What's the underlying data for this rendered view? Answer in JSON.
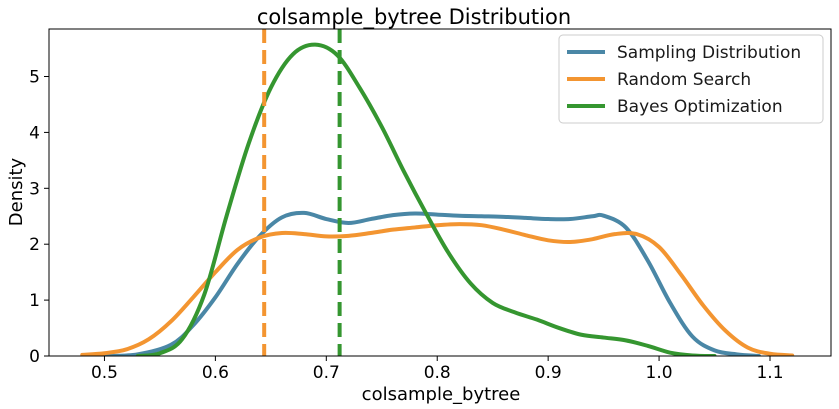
{
  "chart_data": {
    "type": "line",
    "title": "colsample_bytree Distribution",
    "xlabel": "colsample_bytree",
    "ylabel": "Density",
    "xlim": [
      0.45,
      1.155
    ],
    "ylim": [
      0,
      5.85
    ],
    "xticks": [
      0.5,
      0.6,
      0.7,
      0.8,
      0.9,
      1.0,
      1.1
    ],
    "xtick_labels": [
      "0.5",
      "0.6",
      "0.7",
      "0.8",
      "0.9",
      "1.0",
      "1.1"
    ],
    "yticks": [
      0,
      1,
      2,
      3,
      4,
      5
    ],
    "ytick_labels": [
      "0",
      "1",
      "2",
      "3",
      "4",
      "5"
    ],
    "grid": false,
    "legend_position": "top-right",
    "series": [
      {
        "name": "Sampling Distribution",
        "color": "#4a87a6",
        "x": [
          0.5,
          0.53,
          0.56,
          0.58,
          0.6,
          0.62,
          0.64,
          0.66,
          0.68,
          0.7,
          0.72,
          0.74,
          0.76,
          0.78,
          0.8,
          0.82,
          0.84,
          0.86,
          0.88,
          0.9,
          0.92,
          0.94,
          0.95,
          0.97,
          0.99,
          1.01,
          1.03,
          1.05,
          1.07,
          1.09
        ],
        "y": [
          0.0,
          0.03,
          0.2,
          0.55,
          1.05,
          1.65,
          2.15,
          2.48,
          2.56,
          2.45,
          2.38,
          2.45,
          2.52,
          2.55,
          2.53,
          2.51,
          2.5,
          2.49,
          2.47,
          2.45,
          2.45,
          2.5,
          2.51,
          2.3,
          1.7,
          0.95,
          0.35,
          0.1,
          0.03,
          0.0
        ]
      },
      {
        "name": "Random Search",
        "color": "#f39531",
        "x": [
          0.48,
          0.5,
          0.52,
          0.54,
          0.56,
          0.58,
          0.6,
          0.62,
          0.64,
          0.66,
          0.68,
          0.7,
          0.72,
          0.74,
          0.76,
          0.78,
          0.8,
          0.82,
          0.84,
          0.86,
          0.88,
          0.9,
          0.92,
          0.94,
          0.96,
          0.98,
          1.0,
          1.02,
          1.04,
          1.06,
          1.08,
          1.1,
          1.12
        ],
        "y": [
          0.02,
          0.05,
          0.12,
          0.3,
          0.62,
          1.05,
          1.5,
          1.9,
          2.12,
          2.2,
          2.18,
          2.14,
          2.15,
          2.2,
          2.26,
          2.3,
          2.34,
          2.36,
          2.34,
          2.26,
          2.16,
          2.07,
          2.04,
          2.09,
          2.18,
          2.18,
          1.95,
          1.45,
          0.9,
          0.45,
          0.15,
          0.04,
          0.01
        ]
      },
      {
        "name": "Bayes Optimization",
        "color": "#359630",
        "x": [
          0.53,
          0.55,
          0.57,
          0.59,
          0.61,
          0.63,
          0.65,
          0.67,
          0.69,
          0.71,
          0.73,
          0.75,
          0.77,
          0.79,
          0.81,
          0.83,
          0.85,
          0.87,
          0.89,
          0.91,
          0.93,
          0.95,
          0.97,
          0.99,
          1.01,
          1.03,
          1.05
        ],
        "y": [
          0.0,
          0.05,
          0.3,
          1.1,
          2.5,
          3.8,
          4.8,
          5.4,
          5.57,
          5.38,
          4.8,
          4.1,
          3.3,
          2.55,
          1.85,
          1.3,
          0.95,
          0.78,
          0.65,
          0.5,
          0.38,
          0.33,
          0.28,
          0.18,
          0.06,
          0.01,
          0.0
        ]
      }
    ],
    "vlines": [
      {
        "x": 0.644,
        "color": "#f39531"
      },
      {
        "x": 0.712,
        "color": "#359630"
      }
    ]
  }
}
